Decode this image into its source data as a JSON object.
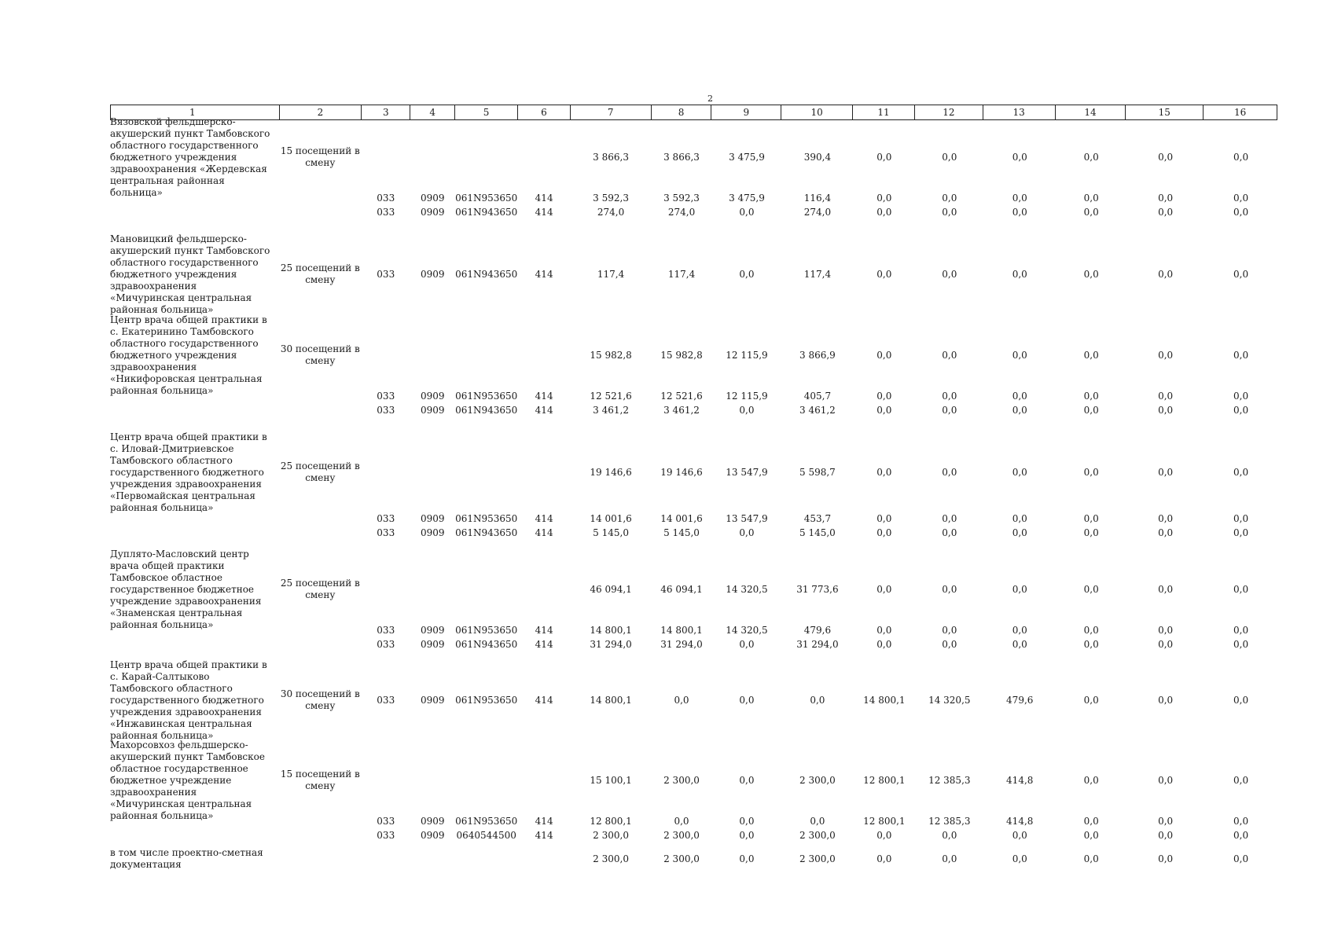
{
  "page_number": "2",
  "header": [
    "1",
    "2",
    "3",
    "4",
    "5",
    "6",
    "7",
    "8",
    "9",
    "10",
    "11",
    "12",
    "13",
    "14",
    "15",
    "16"
  ],
  "blocks": [
    {
      "name": "Вязовской фельдшерско-акушерский пункт Тамбовского областного государственного бюджетного учреждения здравоохранения «Жердевская центральная районная больница»",
      "capacity": "15 посещений в смену",
      "main": [
        "",
        "",
        "",
        "",
        "3 866,3",
        "3 866,3",
        "3 475,9",
        "390,4",
        "0,0",
        "0,0",
        "0,0",
        "0,0",
        "0,0",
        "0,0"
      ],
      "subs": [
        [
          "033",
          "0909",
          "061N953650",
          "414",
          "3 592,3",
          "3 592,3",
          "3 475,9",
          "116,4",
          "0,0",
          "0,0",
          "0,0",
          "0,0",
          "0,0",
          "0,0"
        ],
        [
          "033",
          "0909",
          "061N943650",
          "414",
          "274,0",
          "274,0",
          "0,0",
          "274,0",
          "0,0",
          "0,0",
          "0,0",
          "0,0",
          "0,0",
          "0,0"
        ]
      ]
    },
    {
      "name": "Мановицкий фельдшерско-акушерский пункт Тамбовского областного государственного бюджетного учреждения здравоохранения «Мичуринская центральная районная больница»",
      "capacity": "25 посещений в смену",
      "main": [
        "033",
        "0909",
        "061N943650",
        "414",
        "117,4",
        "117,4",
        "0,0",
        "117,4",
        "0,0",
        "0,0",
        "0,0",
        "0,0",
        "0,0",
        "0,0"
      ],
      "subs": []
    },
    {
      "name": "Центр врача общей практики в с. Екатеринино Тамбовского областного государственного бюджетного учреждения здравоохранения «Никифоровская центральная районная больница»",
      "capacity": "30 посещений в смену",
      "main": [
        "",
        "",
        "",
        "",
        "15 982,8",
        "15 982,8",
        "12 115,9",
        "3 866,9",
        "0,0",
        "0,0",
        "0,0",
        "0,0",
        "0,0",
        "0,0"
      ],
      "subs": [
        [
          "033",
          "0909",
          "061N953650",
          "414",
          "12 521,6",
          "12 521,6",
          "12 115,9",
          "405,7",
          "0,0",
          "0,0",
          "0,0",
          "0,0",
          "0,0",
          "0,0"
        ],
        [
          "033",
          "0909",
          "061N943650",
          "414",
          "3 461,2",
          "3 461,2",
          "0,0",
          "3 461,2",
          "0,0",
          "0,0",
          "0,0",
          "0,0",
          "0,0",
          "0,0"
        ]
      ]
    },
    {
      "name": "Центр врача общей практики в с. Иловай-Дмитриевское Тамбовского областного государственного бюджетного учреждения здравоохранения «Первомайская центральная районная больница»",
      "capacity": "25 посещений в смену",
      "main": [
        "",
        "",
        "",
        "",
        "19 146,6",
        "19 146,6",
        "13 547,9",
        "5 598,7",
        "0,0",
        "0,0",
        "0,0",
        "0,0",
        "0,0",
        "0,0"
      ],
      "subs": [
        [
          "033",
          "0909",
          "061N953650",
          "414",
          "14 001,6",
          "14 001,6",
          "13 547,9",
          "453,7",
          "0,0",
          "0,0",
          "0,0",
          "0,0",
          "0,0",
          "0,0"
        ],
        [
          "033",
          "0909",
          "061N943650",
          "414",
          "5 145,0",
          "5 145,0",
          "0,0",
          "5 145,0",
          "0,0",
          "0,0",
          "0,0",
          "0,0",
          "0,0",
          "0,0"
        ]
      ]
    },
    {
      "name": "Дуплято-Масловский центр врача общей практики Тамбовское областное государственное бюджетное учреждение здравоохранения «Знаменская центральная районная больница»",
      "capacity": "25 посещений в смену",
      "main": [
        "",
        "",
        "",
        "",
        "46 094,1",
        "46 094,1",
        "14 320,5",
        "31 773,6",
        "0,0",
        "0,0",
        "0,0",
        "0,0",
        "0,0",
        "0,0"
      ],
      "subs": [
        [
          "033",
          "0909",
          "061N953650",
          "414",
          "14 800,1",
          "14 800,1",
          "14 320,5",
          "479,6",
          "0,0",
          "0,0",
          "0,0",
          "0,0",
          "0,0",
          "0,0"
        ],
        [
          "033",
          "0909",
          "061N943650",
          "414",
          "31 294,0",
          "31 294,0",
          "0,0",
          "31 294,0",
          "0,0",
          "0,0",
          "0,0",
          "0,0",
          "0,0",
          "0,0"
        ]
      ]
    },
    {
      "name": "Центр врача общей практики в с. Карай-Салтыково Тамбовского областного государственного бюджетного учреждения здравоохранения «Инжавинская центральная районная больница»",
      "capacity": "30 посещений в смену",
      "main": [
        "033",
        "0909",
        "061N953650",
        "414",
        "14 800,1",
        "0,0",
        "0,0",
        "0,0",
        "14 800,1",
        "14 320,5",
        "479,6",
        "0,0",
        "0,0",
        "0,0"
      ],
      "subs": []
    },
    {
      "name": "Махорсовхоз фельдшерско-акушерский пункт Тамбовское областное государственное бюджетное учреждение здравоохранения «Мичуринская центральная районная больница»",
      "capacity": "15 посещений в смену",
      "main": [
        "",
        "",
        "",
        "",
        "15 100,1",
        "2 300,0",
        "0,0",
        "2 300,0",
        "12 800,1",
        "12 385,3",
        "414,8",
        "0,0",
        "0,0",
        "0,0"
      ],
      "subs": [
        [
          "033",
          "0909",
          "061N953650",
          "414",
          "12 800,1",
          "0,0",
          "0,0",
          "0,0",
          "12 800,1",
          "12 385,3",
          "414,8",
          "0,0",
          "0,0",
          "0,0"
        ],
        [
          "033",
          "0909",
          "0640544500",
          "414",
          "2 300,0",
          "2 300,0",
          "0,0",
          "2 300,0",
          "0,0",
          "0,0",
          "0,0",
          "0,0",
          "0,0",
          "0,0"
        ]
      ]
    },
    {
      "name": "в том числе проектно-сметная документация",
      "capacity": "",
      "main": [
        "",
        "",
        "",
        "",
        "2 300,0",
        "2 300,0",
        "0,0",
        "2 300,0",
        "0,0",
        "0,0",
        "0,0",
        "0,0",
        "0,0",
        "0,0"
      ],
      "subs": []
    }
  ]
}
